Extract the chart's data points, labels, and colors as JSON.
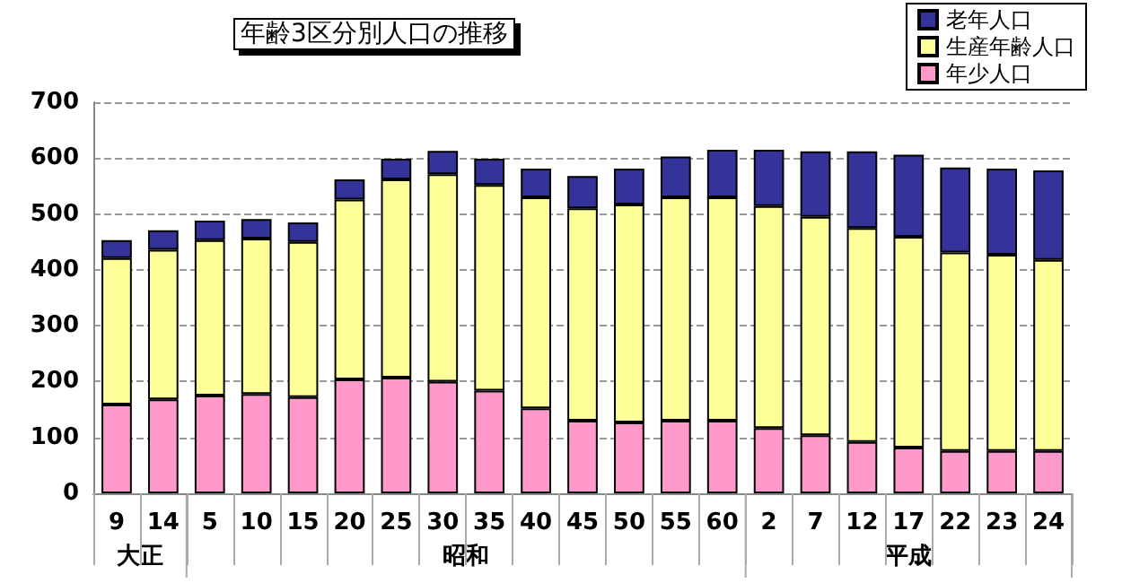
{
  "chart_data": {
    "type": "bar",
    "title": "年齢3区分別人口の推移",
    "stacked": true,
    "categories": [
      "9",
      "14",
      "5",
      "10",
      "15",
      "20",
      "25",
      "30",
      "35",
      "40",
      "45",
      "50",
      "55",
      "60",
      "2",
      "7",
      "12",
      "17",
      "22",
      "23",
      "24"
    ],
    "series": [
      {
        "name": "年少人口",
        "color": "#ff99cc",
        "values": [
          159,
          168,
          175,
          178,
          172,
          204,
          207,
          200,
          184,
          152,
          130,
          127,
          130,
          130,
          117,
          104,
          92,
          82,
          76,
          76,
          76
        ]
      },
      {
        "name": "生産年齢人口",
        "color": "#ffff99",
        "values": [
          262,
          268,
          278,
          278,
          278,
          322,
          355,
          371,
          368,
          378,
          380,
          390,
          400,
          400,
          397,
          391,
          383,
          377,
          355,
          351,
          342
        ]
      },
      {
        "name": "老年人口",
        "color": "#333399",
        "values": [
          32,
          35,
          35,
          35,
          35,
          36,
          37,
          42,
          47,
          51,
          58,
          64,
          73,
          85,
          101,
          117,
          137,
          147,
          152,
          154,
          160
        ]
      }
    ],
    "ylim": [
      0,
      700
    ],
    "yticks": [
      0,
      100,
      200,
      300,
      400,
      500,
      600,
      700
    ],
    "grid": "y",
    "legend": "top right",
    "annotations": [
      "大正",
      "昭和",
      "平成"
    ]
  }
}
